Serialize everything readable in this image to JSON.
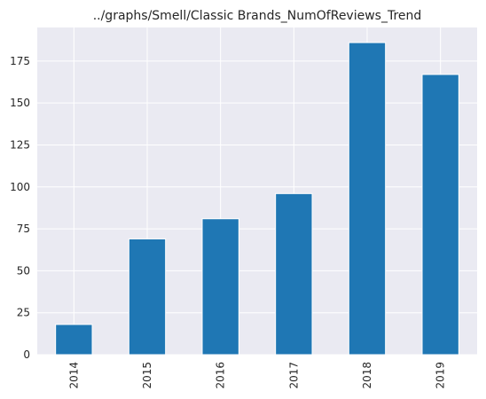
{
  "chart_data": {
    "type": "bar",
    "title": "../graphs/Smell/Classic Brands_NumOfReviews_Trend",
    "categories": [
      "2014",
      "2015",
      "2016",
      "2017",
      "2018",
      "2019"
    ],
    "values": [
      18,
      69,
      81,
      96,
      186,
      167
    ],
    "xlabel": "",
    "ylabel": "",
    "ylim": [
      0,
      195
    ],
    "yticks": [
      0,
      25,
      50,
      75,
      100,
      125,
      150,
      175
    ],
    "ytick_labels": [
      "0",
      "25",
      "50",
      "75",
      "100",
      "125",
      "150",
      "175"
    ],
    "grid": true,
    "colors": {
      "bar": "#1f77b4",
      "plot_background": "#eaeaf2",
      "grid": "#ffffff",
      "text": "#262626"
    }
  }
}
